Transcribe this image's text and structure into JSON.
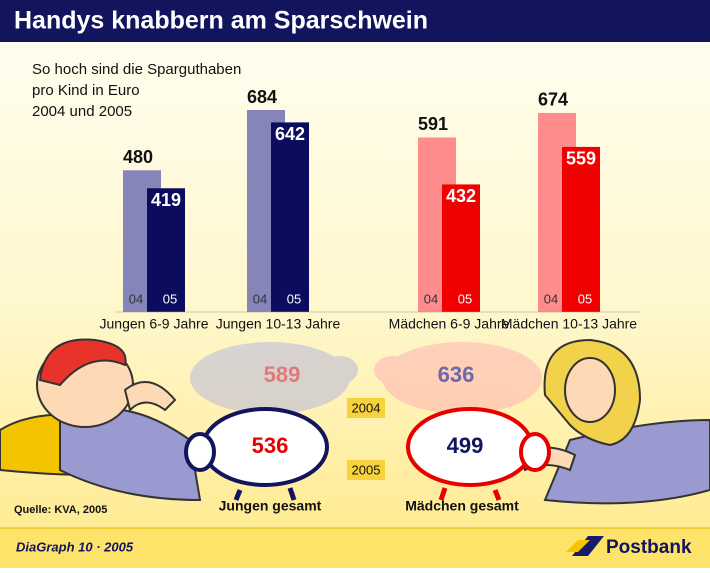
{
  "header": {
    "title": "Handys knabbern am Sparschwein"
  },
  "chart_data": {
    "type": "bar",
    "subtitle": [
      "So hoch sind die Sparguthaben",
      "pro Kind in Euro",
      "2004 und 2005"
    ],
    "categories": [
      "Jungen 6-9 Jahre",
      "Jungen 10-13 Jahre",
      "Mädchen 6-9 Jahre",
      "Mädchen 10-13 Jahre"
    ],
    "series": [
      {
        "name": "04",
        "color": [
          "#8585b9",
          "#8585b9",
          "#ff8c8c",
          "#ff8c8c"
        ],
        "values": [
          480,
          684,
          591,
          674
        ]
      },
      {
        "name": "05",
        "color": [
          "#0c0c5e",
          "#0c0c5e",
          "#f00000",
          "#f00000"
        ],
        "values": [
          419,
          642,
          432,
          559
        ]
      }
    ]
  },
  "totals": {
    "years": [
      "2004",
      "2005"
    ],
    "groups": [
      {
        "name": "Jungen gesamt",
        "values": [
          589,
          536
        ]
      },
      {
        "name": "Mädchen gesamt",
        "values": [
          636,
          499
        ]
      }
    ]
  },
  "footer": {
    "source": "Quelle: KVA, 2005",
    "credit": "DiaGraph 10 · 2005",
    "brand": "Postbank"
  }
}
